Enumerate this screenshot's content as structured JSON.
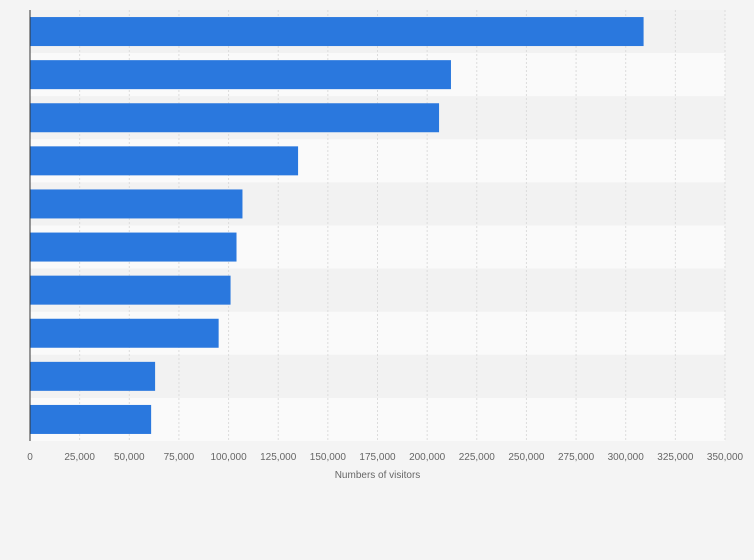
{
  "chart_data": {
    "type": "bar",
    "orientation": "horizontal",
    "categories": [
      "",
      "",
      "",
      "",
      "",
      "",
      "",
      "",
      "",
      ""
    ],
    "values": [
      309000,
      212000,
      206000,
      135000,
      107000,
      104000,
      101000,
      95000,
      63000,
      61000
    ],
    "title": "",
    "xlabel": "Numbers of visitors",
    "ylabel": "",
    "xlim": [
      0,
      350000
    ],
    "xticks": [
      0,
      25000,
      50000,
      75000,
      100000,
      125000,
      150000,
      175000,
      200000,
      225000,
      250000,
      275000,
      300000,
      325000,
      350000
    ],
    "xtick_labels": [
      "0",
      "25,000",
      "50,000",
      "75,000",
      "100,000",
      "125,000",
      "150,000",
      "175,000",
      "200,000",
      "225,000",
      "250,000",
      "275,000",
      "300,000",
      "325,000",
      "350,000"
    ],
    "grid": true,
    "legend": "none"
  },
  "colors": {
    "bar": "#2a78de",
    "band_dark": "#f2f2f2",
    "band_light": "#fafafa",
    "grid": "#dcdcdc",
    "axis": "#333333"
  }
}
